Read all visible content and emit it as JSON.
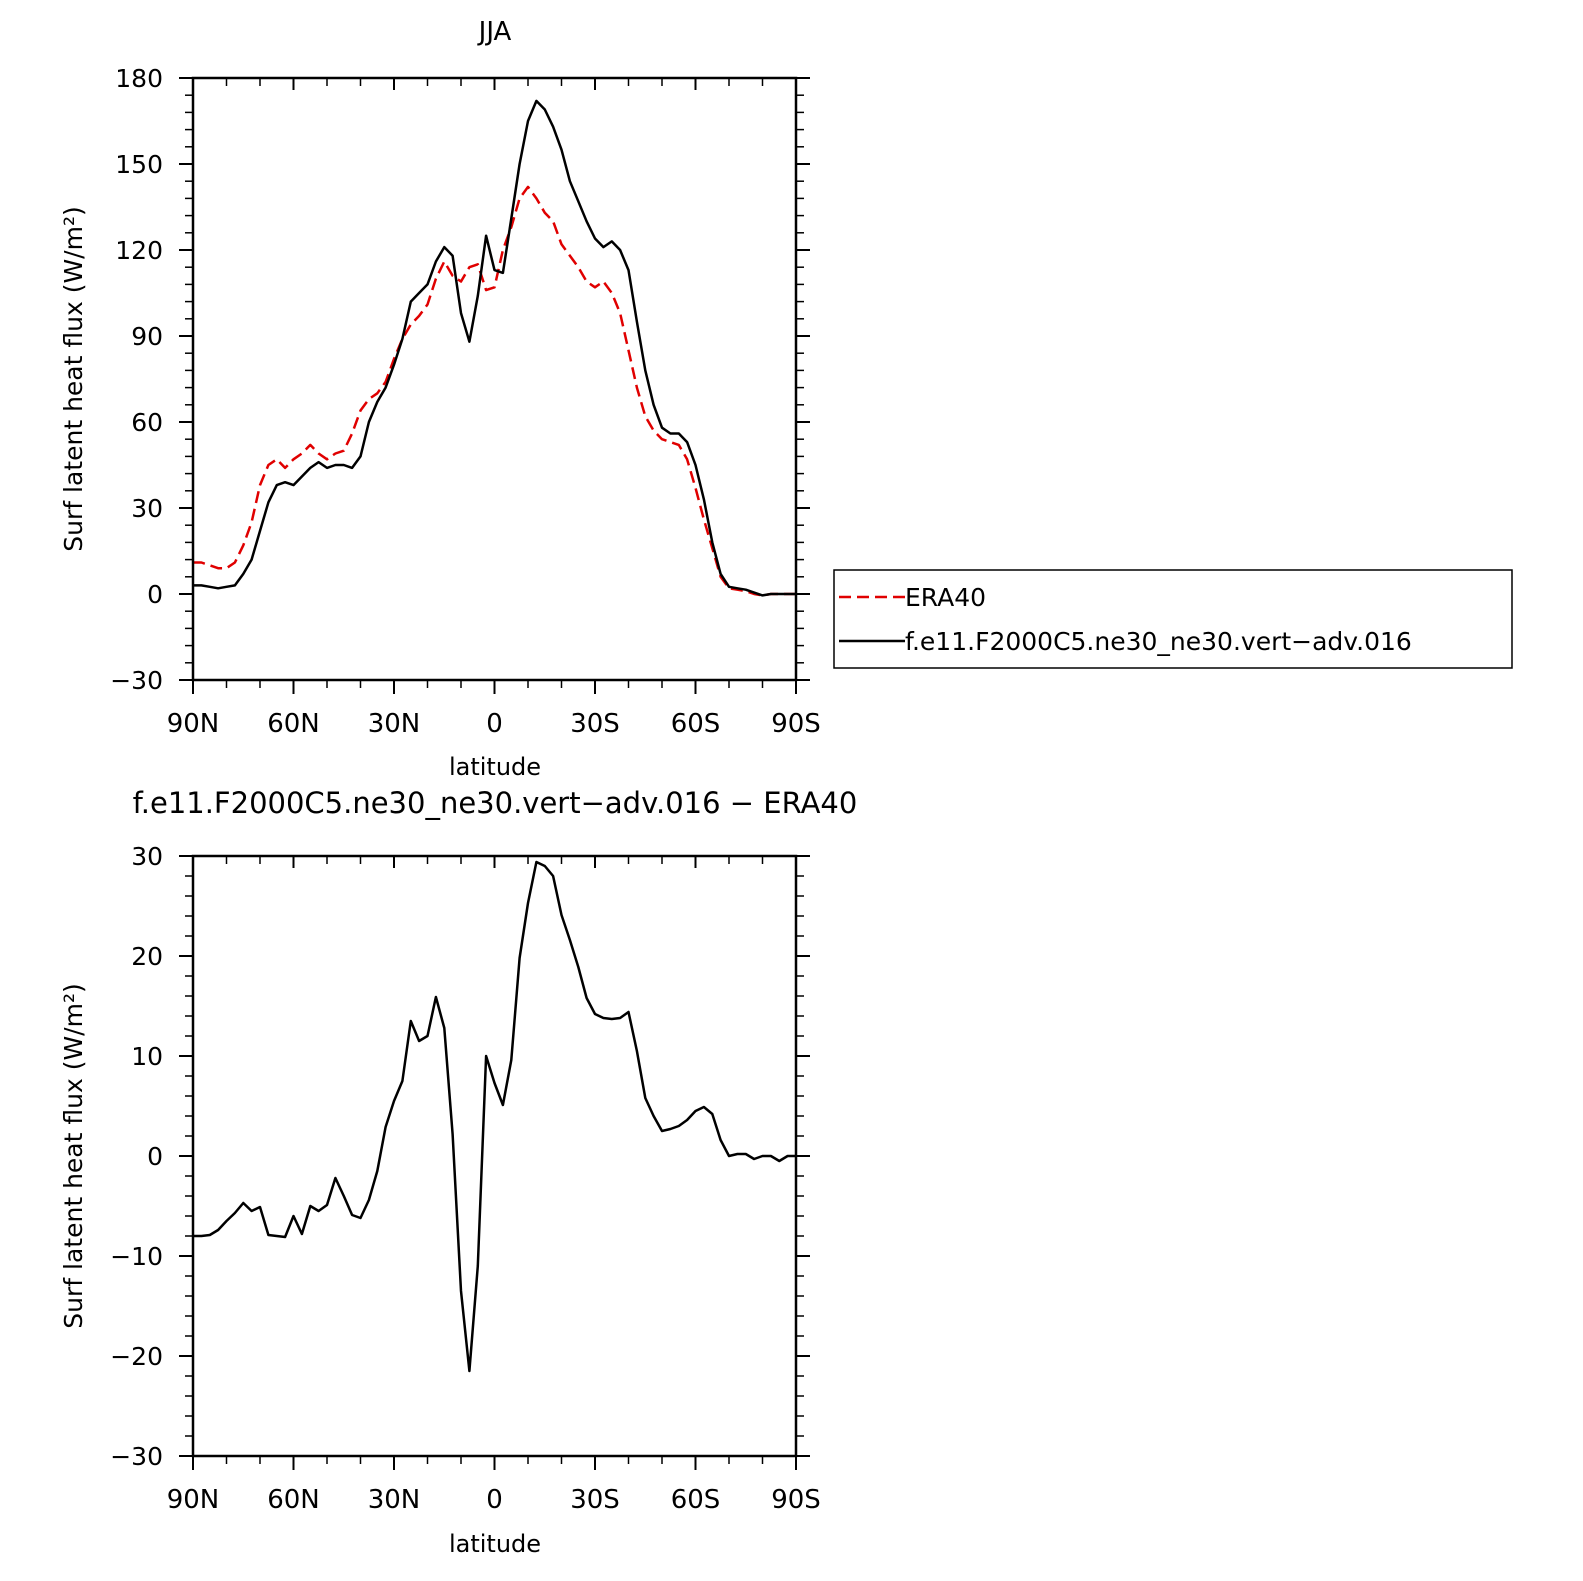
{
  "chart_data": [
    {
      "type": "line",
      "title": "JJA",
      "xlabel": "latitude",
      "ylabel": "Surf latent heat flux (W/m²)",
      "ylim": [
        -30,
        180
      ],
      "xlim": [
        90,
        -90
      ],
      "y_ticks": [
        -30,
        0,
        30,
        60,
        90,
        120,
        150,
        180
      ],
      "x_ticks": [
        {
          "value": 90,
          "label": "90N"
        },
        {
          "value": 60,
          "label": "60N"
        },
        {
          "value": 30,
          "label": "30N"
        },
        {
          "value": 0,
          "label": "0"
        },
        {
          "value": -30,
          "label": "30S"
        },
        {
          "value": -60,
          "label": "60S"
        },
        {
          "value": -90,
          "label": "90S"
        }
      ],
      "legend": "outside-right",
      "series": [
        {
          "name": "ERA40",
          "color": "#e00000",
          "dashed": true,
          "x": [
            90,
            87.5,
            85,
            82.5,
            80,
            77.5,
            75,
            72.5,
            70,
            67.5,
            65,
            62.5,
            60,
            57.5,
            55,
            52.5,
            50,
            47.5,
            45,
            42.5,
            40,
            37.5,
            35,
            32.5,
            30,
            27.5,
            25,
            22.5,
            20,
            17.5,
            15,
            12.5,
            10,
            7.5,
            5,
            2.5,
            0,
            -2.5,
            -5,
            -7.5,
            -10,
            -12.5,
            -15,
            -17.5,
            -20,
            -22.5,
            -25,
            -27.5,
            -30,
            -32.5,
            -35,
            -37.5,
            -40,
            -42.5,
            -45,
            -47.5,
            -50,
            -52.5,
            -55,
            -57.5,
            -60,
            -62.5,
            -65,
            -67.5,
            -70,
            -72.5,
            -75,
            -77.5,
            -80,
            -82.5,
            -85,
            -87.5,
            -90
          ],
          "values": [
            11,
            11,
            10,
            9,
            9,
            11,
            17,
            25,
            38,
            45,
            47,
            44,
            47,
            49,
            52,
            49,
            47,
            49,
            50,
            56,
            64,
            68,
            70,
            74,
            82,
            89,
            94,
            97,
            101,
            110,
            116,
            111,
            109,
            114,
            115,
            106,
            107,
            120,
            128,
            138,
            142,
            138,
            133,
            130,
            122,
            118,
            114,
            109,
            107,
            109,
            105,
            98,
            85,
            72,
            62,
            57,
            54,
            53,
            52,
            47,
            37,
            26,
            16,
            6,
            2,
            1.5,
            1,
            0,
            -0.5,
            0,
            0,
            0,
            0
          ]
        },
        {
          "name": "f.e11.F2000C5.ne30_ne30.vert−adv.016",
          "color": "#000000",
          "dashed": false,
          "x": [
            90,
            87.5,
            85,
            82.5,
            80,
            77.5,
            75,
            72.5,
            70,
            67.5,
            65,
            62.5,
            60,
            57.5,
            55,
            52.5,
            50,
            47.5,
            45,
            42.5,
            40,
            37.5,
            35,
            32.5,
            30,
            27.5,
            25,
            22.5,
            20,
            17.5,
            15,
            12.5,
            10,
            7.5,
            5,
            2.5,
            0,
            -2.5,
            -5,
            -7.5,
            -10,
            -12.5,
            -15,
            -17.5,
            -20,
            -22.5,
            -25,
            -27.5,
            -30,
            -32.5,
            -35,
            -37.5,
            -40,
            -42.5,
            -45,
            -47.5,
            -50,
            -52.5,
            -55,
            -57.5,
            -60,
            -62.5,
            -65,
            -67.5,
            -70,
            -72.5,
            -75,
            -77.5,
            -80,
            -82.5,
            -85,
            -87.5,
            -90
          ],
          "values": [
            3,
            3,
            2.5,
            2,
            2.5,
            3,
            7,
            12,
            22,
            32,
            38,
            39,
            38,
            41,
            44,
            46,
            44,
            45,
            45,
            44,
            48,
            60,
            67,
            72,
            80,
            89,
            102,
            105,
            108,
            116,
            121,
            118,
            98,
            88,
            104,
            125,
            113,
            112,
            131,
            150,
            165,
            172,
            169,
            163,
            155,
            144,
            137,
            130,
            124,
            121,
            123,
            120,
            113,
            95,
            78,
            66,
            58,
            56,
            56,
            53,
            45,
            33,
            18,
            7,
            2.5,
            2,
            1.5,
            0.5,
            -0.5,
            0,
            0,
            0,
            0
          ]
        }
      ]
    },
    {
      "type": "line",
      "title": "f.e11.F2000C5.ne30_ne30.vert−adv.016 − ERA40",
      "xlabel": "latitude",
      "ylabel": "Surf latent heat flux (W/m²)",
      "ylim": [
        -30,
        30
      ],
      "xlim": [
        90,
        -90
      ],
      "y_ticks": [
        -30,
        -20,
        -10,
        0,
        10,
        20,
        30
      ],
      "x_ticks": [
        {
          "value": 90,
          "label": "90N"
        },
        {
          "value": 60,
          "label": "60N"
        },
        {
          "value": 30,
          "label": "30N"
        },
        {
          "value": 0,
          "label": "0"
        },
        {
          "value": -30,
          "label": "30S"
        },
        {
          "value": -60,
          "label": "60S"
        },
        {
          "value": -90,
          "label": "90S"
        }
      ],
      "series": [
        {
          "color": "#000000",
          "dashed": false,
          "x": [
            90,
            87.5,
            85,
            82.5,
            80,
            77.5,
            75,
            72.5,
            70,
            67.5,
            65,
            62.5,
            60,
            57.5,
            55,
            52.5,
            50,
            47.5,
            45,
            42.5,
            40,
            37.5,
            35,
            32.5,
            30,
            27.5,
            25,
            22.5,
            20,
            17.5,
            15,
            12.5,
            10,
            7.5,
            5,
            2.5,
            0,
            -2.5,
            -5,
            -7.5,
            -10,
            -12.5,
            -15,
            -17.5,
            -20,
            -22.5,
            -25,
            -27.5,
            -30,
            -32.5,
            -35,
            -37.5,
            -40,
            -42.5,
            -45,
            -47.5,
            -50,
            -52.5,
            -55,
            -57.5,
            -60,
            -62.5,
            -65,
            -67.5,
            -70,
            -72.5,
            -75,
            -77.5,
            -80,
            -82.5,
            -85,
            -87.5,
            -90
          ],
          "values": [
            -8,
            -8,
            -7.9,
            -7.4,
            -6.5,
            -5.7,
            -4.7,
            -5.5,
            -5.1,
            -7.9,
            -8,
            -8.1,
            -6,
            -7.8,
            -5,
            -5.5,
            -4.9,
            -2.2,
            -4,
            -5.9,
            -6.2,
            -4.4,
            -1.5,
            2.9,
            5.5,
            7.5,
            13.5,
            11.5,
            12,
            15.9,
            12.8,
            2.2,
            -13.5,
            -21.5,
            -11,
            10,
            7.3,
            5.1,
            9.6,
            19.8,
            25.3,
            29.4,
            29,
            28,
            24.1,
            21.6,
            18.9,
            15.8,
            14.2,
            13.8,
            13.7,
            13.8,
            14.4,
            10.5,
            5.8,
            4,
            2.5,
            2.7,
            3,
            3.6,
            4.5,
            4.9,
            4.2,
            1.6,
            0,
            0.2,
            0.2,
            -0.3,
            0,
            0,
            -0.5,
            0,
            0
          ]
        }
      ]
    }
  ]
}
